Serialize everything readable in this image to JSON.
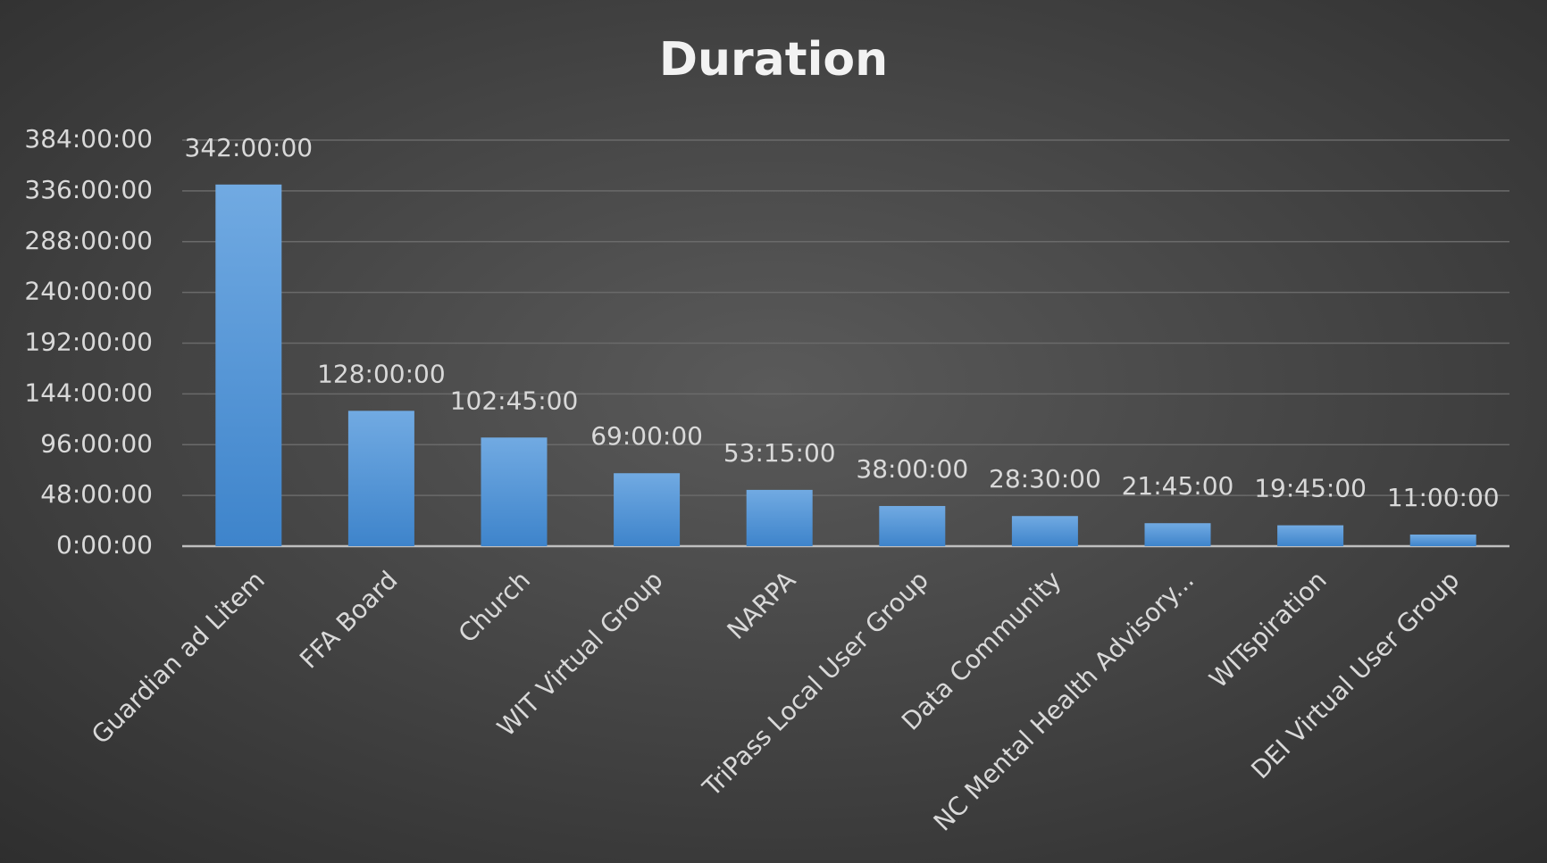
{
  "chart_data": {
    "type": "bar",
    "title": "Duration",
    "categories": [
      "Guardian ad Litem",
      "FFA Board",
      "Church",
      "WIT Virtual Group",
      "NARPA",
      "TriPass Local User Group",
      "Data Community",
      "NC Mental Health Advisory...",
      "WITspiration",
      "DEI Virtual User Group"
    ],
    "values": [
      342,
      128,
      102.75,
      69,
      53.25,
      38,
      28.5,
      21.75,
      19.75,
      11
    ],
    "value_labels": [
      "342:00:00",
      "128:00:00",
      "102:45:00",
      "69:00:00",
      "53:15:00",
      "38:00:00",
      "28:30:00",
      "21:45:00",
      "19:45:00",
      "11:00:00"
    ],
    "color": "#5b9bd5",
    "ylim": [
      0,
      384
    ],
    "yticks": [
      {
        "value": 0,
        "label": "0:00:00"
      },
      {
        "value": 48,
        "label": "48:00:00"
      },
      {
        "value": 96,
        "label": "96:00:00"
      },
      {
        "value": 144,
        "label": "144:00:00"
      },
      {
        "value": 192,
        "label": "192:00:00"
      },
      {
        "value": 240,
        "label": "240:00:00"
      },
      {
        "value": 288,
        "label": "288:00:00"
      },
      {
        "value": 336,
        "label": "336:00:00"
      },
      {
        "value": 384,
        "label": "384:00:00"
      }
    ],
    "grid": true
  }
}
